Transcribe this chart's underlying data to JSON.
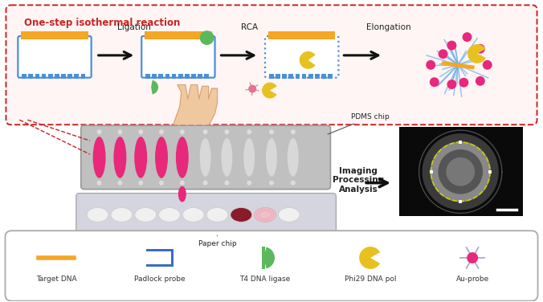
{
  "bg_color": "#ffffff",
  "red_box_color": "#cc2222",
  "red_box_label": "One-step isothermal reaction",
  "step_labels": [
    "Ligation",
    "RCA",
    "Elongation"
  ],
  "dna_top_color": "#f5a623",
  "dna_body_color": "#4a90d9",
  "green_color": "#5cb85c",
  "yellow_color": "#e8c020",
  "pink_color": "#e8287a",
  "legend_items": [
    "Target DNA",
    "Padlock probe",
    "T4 DNA ligase",
    "Phi29 DNA pol",
    "Au-probe"
  ],
  "pdms_label": "PDMS chip",
  "paper_label": "Paper chip",
  "imaging_label": "Imaging\nProcessing\nAnalysis",
  "font_size_small": 6.5,
  "font_size_medium": 7.5,
  "font_size_large": 8.5
}
